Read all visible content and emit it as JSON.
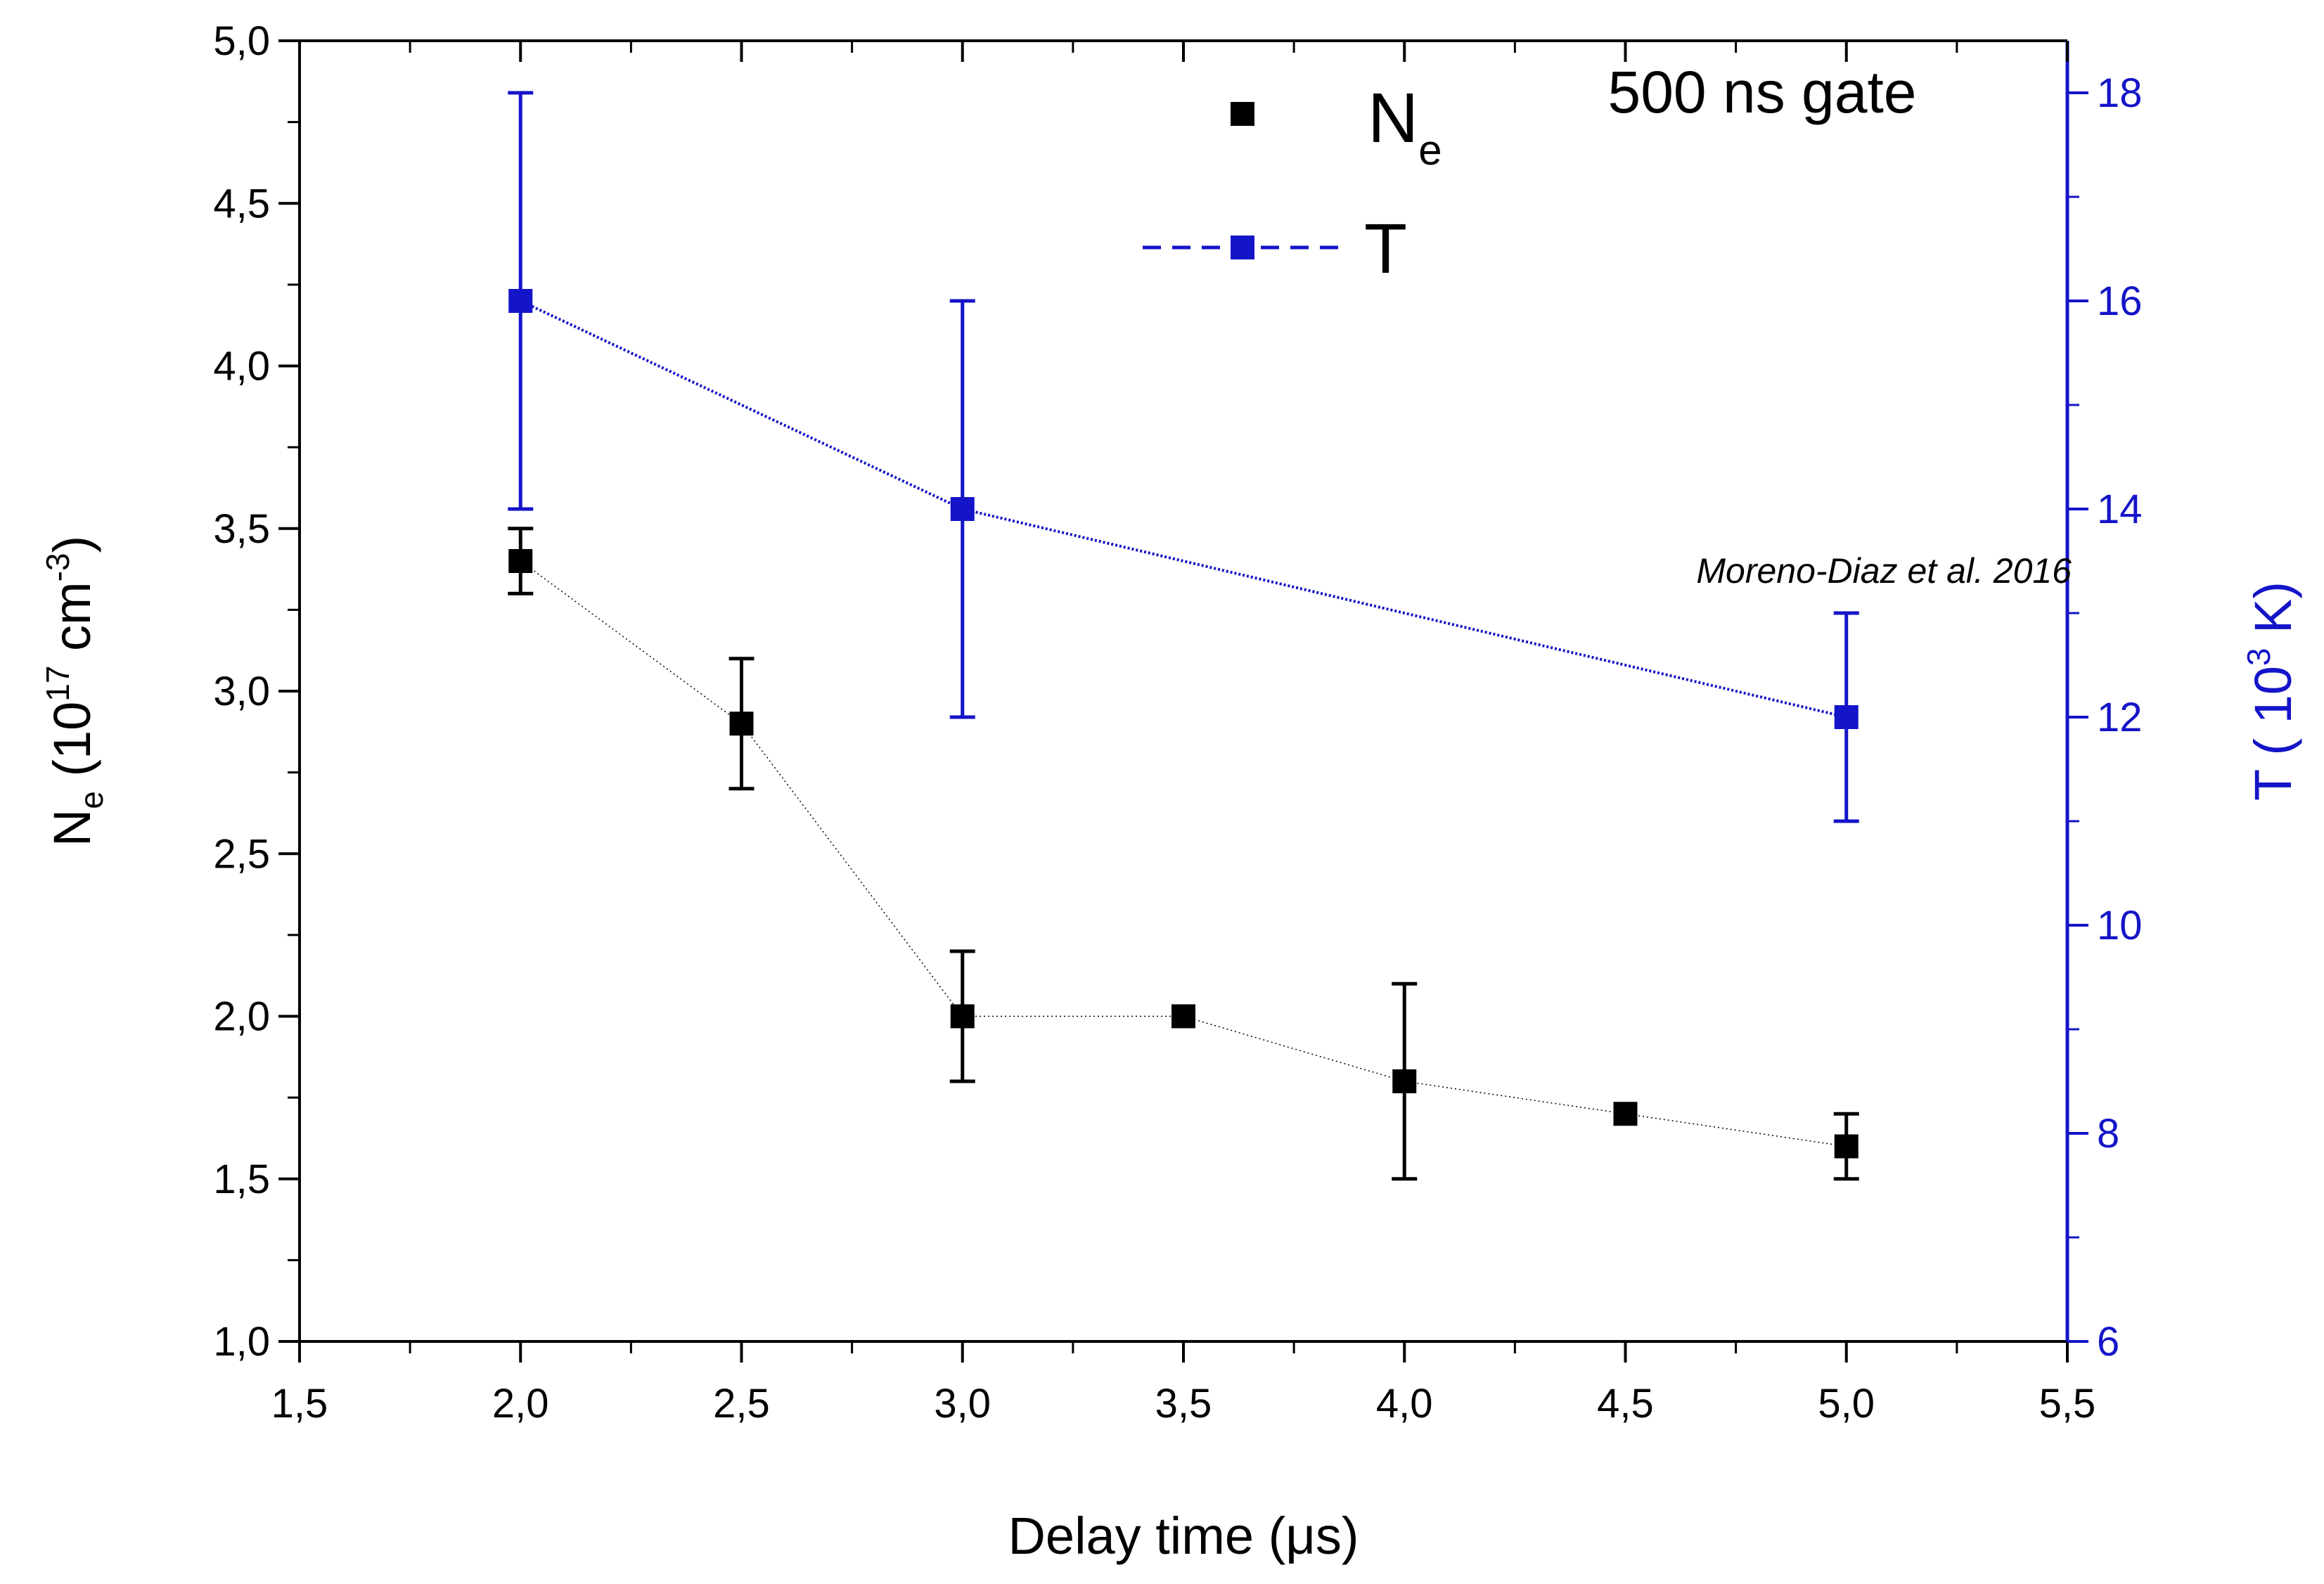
{
  "chart_data": {
    "type": "scatter",
    "xlabel": "Delay time (μs)",
    "xlim": [
      1.5,
      5.5
    ],
    "x_ticks": [
      "1,5",
      "2,0",
      "2,5",
      "3,0",
      "3,5",
      "4,0",
      "4,5",
      "5,0",
      "5,5"
    ],
    "x_tick_values": [
      1.5,
      2.0,
      2.5,
      3.0,
      3.5,
      4.0,
      4.5,
      5.0,
      5.5
    ],
    "y_left": {
      "label_main": "N",
      "label_sub": "e",
      "label_units_open": " (10",
      "label_units_exp": "17",
      "label_units_mid": " cm",
      "label_units_exp2": "-3",
      "label_units_close": ")",
      "ylim": [
        1.0,
        5.0
      ],
      "ticks": [
        "1,0",
        "1,5",
        "2,0",
        "2,5",
        "3,0",
        "3,5",
        "4,0",
        "4,5",
        "5,0"
      ],
      "tick_values": [
        1.0,
        1.5,
        2.0,
        2.5,
        3.0,
        3.5,
        4.0,
        4.5,
        5.0
      ]
    },
    "y_right": {
      "label_main": "T ( 10",
      "label_exp": "3",
      "label_close": " K)",
      "ylim": [
        6,
        18.5
      ],
      "ticks": [
        "6",
        "8",
        "10",
        "12",
        "14",
        "16",
        "18"
      ],
      "tick_values": [
        6,
        8,
        10,
        12,
        14,
        16,
        18
      ],
      "color": "#1414c8"
    },
    "series": [
      {
        "name": "Ne",
        "axis": "left",
        "color": "#000000",
        "x": [
          2.0,
          2.5,
          3.0,
          3.5,
          4.0,
          4.5,
          5.0
        ],
        "y": [
          3.4,
          2.9,
          2.0,
          2.0,
          1.8,
          1.7,
          1.6
        ],
        "err_low": [
          3.3,
          2.7,
          1.8,
          null,
          1.5,
          null,
          1.5
        ],
        "err_high": [
          3.5,
          3.1,
          2.2,
          null,
          2.1,
          null,
          1.7
        ]
      },
      {
        "name": "T",
        "axis": "right",
        "color": "#1414c8",
        "x": [
          2.0,
          3.0,
          5.0
        ],
        "y": [
          16,
          14,
          12
        ],
        "err_low": [
          14,
          12,
          11
        ],
        "err_high": [
          18,
          16,
          13
        ]
      }
    ],
    "legend": [
      {
        "label_main": "N",
        "label_sub": "e",
        "marker_color": "#000000",
        "line": false
      },
      {
        "label_main": "T",
        "label_sub": "",
        "marker_color": "#1414c8",
        "line": true
      }
    ],
    "annotation": "500 ns gate",
    "citation": "Moreno-Diaz et al. 2016"
  }
}
